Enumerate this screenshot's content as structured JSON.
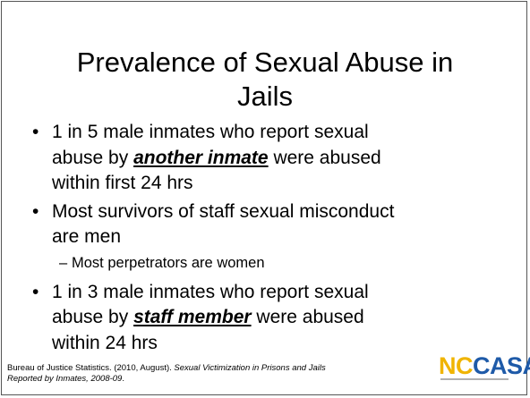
{
  "title": [
    "Prevalence of Sexual Abuse in",
    "Jails"
  ],
  "bullets": [
    {
      "level": 1,
      "lines": [
        [
          {
            "text": "1 in 5 male inmates who report sexual"
          }
        ],
        [
          {
            "text": "abuse by "
          },
          {
            "text": "another inmate",
            "emphasis": true
          },
          {
            "text": " were abused"
          }
        ],
        [
          {
            "text": "within first 24 hrs"
          }
        ]
      ]
    },
    {
      "level": 1,
      "lines": [
        [
          {
            "text": "Most survivors of staff sexual misconduct"
          }
        ],
        [
          {
            "text": "are men"
          }
        ]
      ]
    },
    {
      "level": 2,
      "lines": [
        [
          {
            "text": "Most perpetrators are women"
          }
        ]
      ]
    },
    {
      "level": 1,
      "lines": [
        [
          {
            "text": "1 in 3 male inmates who report sexual"
          }
        ],
        [
          {
            "text": "abuse by "
          },
          {
            "text": "staff member",
            "emphasis": true
          },
          {
            "text": " were abused"
          }
        ],
        [
          {
            "text": "within 24 hrs"
          }
        ]
      ]
    }
  ],
  "citation": [
    [
      {
        "text": "Bureau of Justice Statistics. (2010, August). "
      },
      {
        "text": "Sexual Victimization in Prisons and Jails",
        "italic": true
      }
    ],
    [
      {
        "text": "Reported by Inmates, 2008-09",
        "italic": true
      },
      {
        "text": "."
      }
    ]
  ],
  "logo": {
    "part1": "NC",
    "part2": "CASA"
  }
}
